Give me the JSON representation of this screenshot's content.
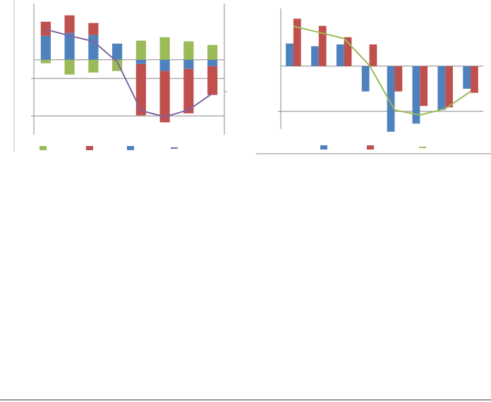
{
  "chart_data": [
    {
      "type": "bar",
      "stacked": true,
      "grid": true,
      "categories": [
        null,
        null,
        null,
        null,
        null,
        null,
        null,
        null
      ],
      "ylim": [
        -4,
        3
      ],
      "yticks": [
        -3,
        -1
      ],
      "series": [
        {
          "color": "#9bbb59",
          "values": [
            -0.19,
            -0.79,
            -0.68,
            -0.6,
            1.02,
            1.2,
            0.98,
            0.79
          ]
        },
        {
          "color": "#c0504d",
          "values": [
            0.75,
            0.94,
            0.64,
            null,
            -2.74,
            -2.74,
            -2.37,
            -1.54
          ]
        },
        {
          "color": "#4f81bd",
          "values": [
            1.28,
            1.43,
            1.32,
            0.86,
            -0.23,
            -0.6,
            -0.49,
            -0.34
          ]
        },
        {
          "type": "line",
          "color": "#8064a2",
          "values": [
            1.62,
            1.28,
            0.98,
            -0.11,
            -2.71,
            -3.05,
            -2.67,
            -1.8
          ]
        }
      ]
    },
    {
      "type": "bar",
      "stacked": false,
      "grid": true,
      "categories": [
        null,
        null,
        null,
        null,
        null,
        null,
        null,
        null
      ],
      "ylim": [
        -1.5,
        1.3
      ],
      "yticks": [
        -1
      ],
      "series": [
        {
          "color": "#4f81bd",
          "values": [
            0.5,
            0.44,
            0.48,
            -0.56,
            -1.45,
            -1.27,
            -0.97,
            -0.5
          ]
        },
        {
          "color": "#c0504d",
          "values": [
            1.05,
            0.89,
            0.64,
            0.48,
            -0.56,
            -0.88,
            -0.91,
            -0.59
          ]
        },
        {
          "type": "line",
          "color": "#9bbb59",
          "values": [
            0.88,
            0.75,
            0.61,
            0.02,
            -0.97,
            -1.08,
            -0.94,
            -0.56
          ]
        }
      ]
    }
  ]
}
